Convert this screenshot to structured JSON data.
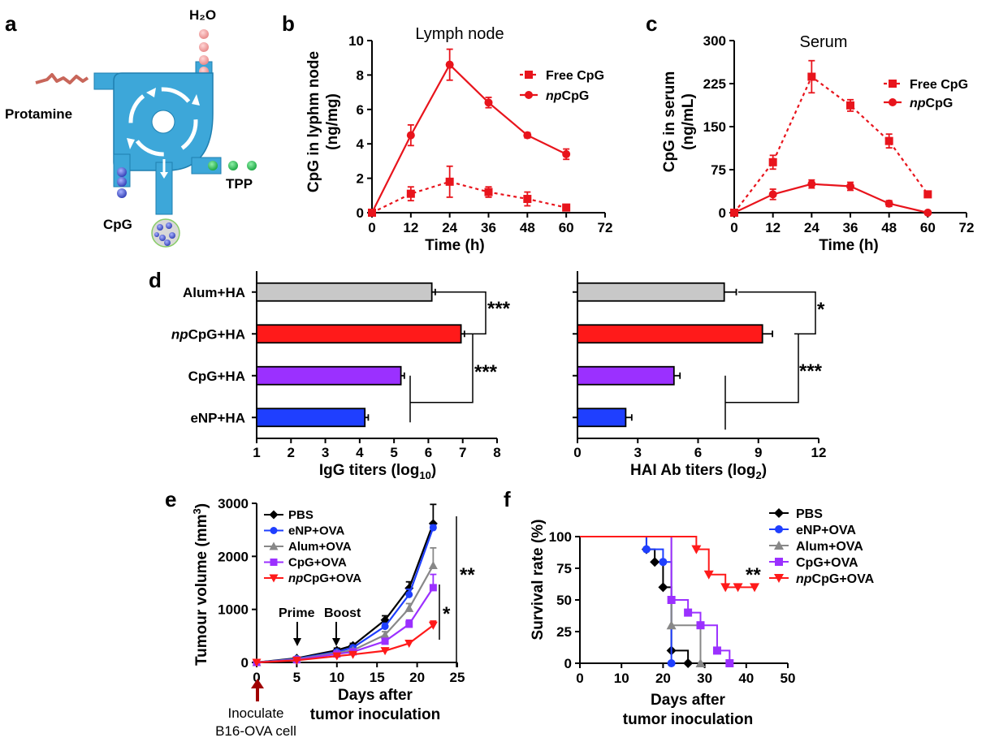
{
  "figure": {
    "panel_labels": [
      "a",
      "b",
      "c",
      "d",
      "e",
      "f"
    ]
  },
  "panel_a": {
    "labels": {
      "water": "H₂O",
      "protamine": "Protamine",
      "tpp": "TPP",
      "cpg": "CpG"
    },
    "colors": {
      "pipe": "#3da7d9",
      "water": "#f0a0a0",
      "tpp": "#2bbd4f",
      "cpg": "#4a56c8",
      "protamine": "#c8665a"
    }
  },
  "chart_data": [
    {
      "id": "b",
      "type": "line",
      "title": "Lymph node",
      "xlabel": "Time (h)",
      "ylabel": "CpG in lyphm node (ng/mg)",
      "xlim": [
        0,
        72
      ],
      "ylim": [
        0,
        10
      ],
      "xticks": [
        "0",
        "12",
        "24",
        "36",
        "48",
        "60",
        "72"
      ],
      "yticks": [
        "0",
        "2",
        "4",
        "6",
        "8",
        "10"
      ],
      "legend_position": "top-right",
      "series": [
        {
          "name": "Free CpG",
          "style": "dotted",
          "marker": "square",
          "color": "#e8141c",
          "x": [
            0,
            12,
            24,
            36,
            48,
            60
          ],
          "y": [
            0,
            1.1,
            1.8,
            1.2,
            0.8,
            0.3
          ],
          "err": [
            0,
            0.4,
            0.9,
            0.3,
            0.4,
            0.1
          ]
        },
        {
          "name": "npCpG",
          "style": "solid",
          "marker": "circle",
          "color": "#e8141c",
          "x": [
            0,
            12,
            24,
            36,
            48,
            60
          ],
          "y": [
            0,
            4.5,
            8.6,
            6.4,
            4.5,
            3.4
          ],
          "err": [
            0,
            0.6,
            0.9,
            0.3,
            0.15,
            0.3
          ]
        }
      ]
    },
    {
      "id": "c",
      "type": "line",
      "title": "Serum",
      "xlabel": "Time (h)",
      "ylabel": "CpG in serum (ng/mL)",
      "xlim": [
        0,
        72
      ],
      "ylim": [
        0,
        300
      ],
      "xticks": [
        "0",
        "12",
        "24",
        "36",
        "48",
        "60",
        "72"
      ],
      "yticks": [
        "0",
        "75",
        "150",
        "225",
        "300"
      ],
      "legend_position": "top-right",
      "series": [
        {
          "name": "Free CpG",
          "style": "dotted",
          "marker": "square",
          "color": "#e8141c",
          "x": [
            0,
            12,
            24,
            36,
            48,
            60
          ],
          "y": [
            0,
            88,
            237,
            187,
            125,
            32
          ],
          "err": [
            0,
            12,
            28,
            10,
            12,
            4
          ]
        },
        {
          "name": "npCpG",
          "style": "solid",
          "marker": "circle",
          "color": "#e8141c",
          "x": [
            0,
            12,
            24,
            36,
            48,
            60
          ],
          "y": [
            0,
            32,
            50,
            46,
            16,
            0
          ],
          "err": [
            0,
            9,
            7,
            7,
            5,
            1
          ]
        }
      ]
    },
    {
      "id": "d-left",
      "type": "bar",
      "orientation": "horizontal",
      "xlabel": "IgG titers (log",
      "xlabel_sub": "10",
      "xlabel_end": ")",
      "xlim": [
        1,
        8
      ],
      "xticks": [
        "1",
        "2",
        "3",
        "4",
        "5",
        "6",
        "7",
        "8"
      ],
      "categories": [
        "Alum+HA",
        "npCpG+HA",
        "CpG+HA",
        "eNP+HA"
      ],
      "values": [
        6.1,
        6.95,
        5.2,
        4.15
      ],
      "errors": [
        0.1,
        0.1,
        0.1,
        0.1
      ],
      "colors": [
        "#c8c8c8",
        "#ff1a1a",
        "#9b30ff",
        "#1f3fff"
      ],
      "significance": [
        "***",
        "***"
      ]
    },
    {
      "id": "d-right",
      "type": "bar",
      "orientation": "horizontal",
      "xlabel": "HAI Ab titers (log",
      "xlabel_sub": "2",
      "xlabel_end": ")",
      "xlim": [
        0,
        12
      ],
      "xticks": [
        "0",
        "3",
        "6",
        "9",
        "12"
      ],
      "categories": [
        "Alum+HA",
        "npCpG+HA",
        "CpG+HA",
        "eNP+HA"
      ],
      "values": [
        7.3,
        9.2,
        4.8,
        2.4
      ],
      "errors": [
        0.6,
        0.5,
        0.3,
        0.3
      ],
      "colors": [
        "#c8c8c8",
        "#ff1a1a",
        "#9b30ff",
        "#1f3fff"
      ],
      "significance": [
        "*",
        "***"
      ]
    },
    {
      "id": "e",
      "type": "line",
      "xlabel": "Days after",
      "xlabel2": "tumor inoculation",
      "ylabel": "Tumour volume (mm",
      "ylabel_sup": "3",
      "ylabel_end": ")",
      "xlim": [
        0,
        25
      ],
      "ylim": [
        0,
        3000
      ],
      "xticks": [
        "0",
        "5",
        "10",
        "15",
        "20",
        "25"
      ],
      "yticks": [
        "0",
        "1000",
        "2000",
        "3000"
      ],
      "legend_position": "top-left",
      "annotations": {
        "prime": "Prime",
        "boost": "Boost",
        "inoculate1": "Inoculate",
        "inoculate2": "B16-OVA cell"
      },
      "significance": [
        "**",
        "*"
      ],
      "series": [
        {
          "name": "PBS",
          "color": "#000000",
          "marker": "diamond",
          "x": [
            0,
            5,
            10,
            12,
            16,
            19,
            22
          ],
          "y": [
            0,
            80,
            230,
            320,
            800,
            1400,
            2620
          ],
          "err": [
            0,
            20,
            40,
            40,
            80,
            120,
            360
          ]
        },
        {
          "name": "eNP+OVA",
          "color": "#1f3fff",
          "marker": "circle",
          "x": [
            0,
            5,
            10,
            12,
            16,
            19,
            22
          ],
          "y": [
            0,
            70,
            200,
            280,
            680,
            1280,
            2540
          ],
          "err": [
            0,
            20,
            30,
            30,
            60,
            100,
            50
          ]
        },
        {
          "name": "Alum+OVA",
          "color": "#888888",
          "marker": "triangle",
          "x": [
            0,
            5,
            10,
            12,
            16,
            19,
            22
          ],
          "y": [
            0,
            60,
            180,
            230,
            520,
            1020,
            1830
          ],
          "err": [
            0,
            15,
            30,
            30,
            60,
            90,
            330
          ]
        },
        {
          "name": "CpG+OVA",
          "color": "#9b30ff",
          "marker": "square",
          "x": [
            0,
            5,
            10,
            12,
            16,
            19,
            22
          ],
          "y": [
            0,
            50,
            160,
            200,
            400,
            720,
            1410
          ],
          "err": [
            0,
            15,
            25,
            25,
            50,
            80,
            250
          ]
        },
        {
          "name": "npCpG+OVA",
          "color": "#ff1a1a",
          "marker": "triangle-down",
          "x": [
            0,
            5,
            10,
            12,
            16,
            19,
            22
          ],
          "y": [
            0,
            40,
            120,
            150,
            220,
            360,
            700
          ],
          "err": [
            0,
            10,
            20,
            20,
            30,
            40,
            80
          ]
        }
      ]
    },
    {
      "id": "f",
      "type": "line",
      "step": true,
      "xlabel": "Days after",
      "xlabel2": "tumor inoculation",
      "ylabel": "Survival rate (%)",
      "xlim": [
        0,
        50
      ],
      "ylim": [
        0,
        100
      ],
      "xticks": [
        "0",
        "10",
        "20",
        "30",
        "40",
        "50"
      ],
      "yticks": [
        "0",
        "25",
        "50",
        "75",
        "100"
      ],
      "legend_position": "top-right",
      "significance": [
        "**"
      ],
      "series": [
        {
          "name": "PBS",
          "color": "#000000",
          "marker": "diamond",
          "x": [
            0,
            16,
            18,
            20,
            22,
            26
          ],
          "y": [
            100,
            90,
            80,
            60,
            10,
            0
          ]
        },
        {
          "name": "eNP+OVA",
          "color": "#1f3fff",
          "marker": "circle",
          "x": [
            0,
            16,
            20,
            22
          ],
          "y": [
            100,
            90,
            80,
            0
          ]
        },
        {
          "name": "Alum+OVA",
          "color": "#888888",
          "marker": "triangle",
          "x": [
            0,
            22,
            29
          ],
          "y": [
            100,
            30,
            0
          ]
        },
        {
          "name": "CpG+OVA",
          "color": "#9b30ff",
          "marker": "square",
          "x": [
            0,
            22,
            26,
            29,
            33,
            36
          ],
          "y": [
            100,
            50,
            40,
            30,
            10,
            0
          ]
        },
        {
          "name": "npCpG+OVA",
          "color": "#ff1a1a",
          "marker": "triangle-down",
          "x": [
            0,
            28,
            31,
            35,
            38,
            42
          ],
          "y": [
            100,
            90,
            70,
            60,
            60,
            60
          ]
        }
      ]
    }
  ]
}
